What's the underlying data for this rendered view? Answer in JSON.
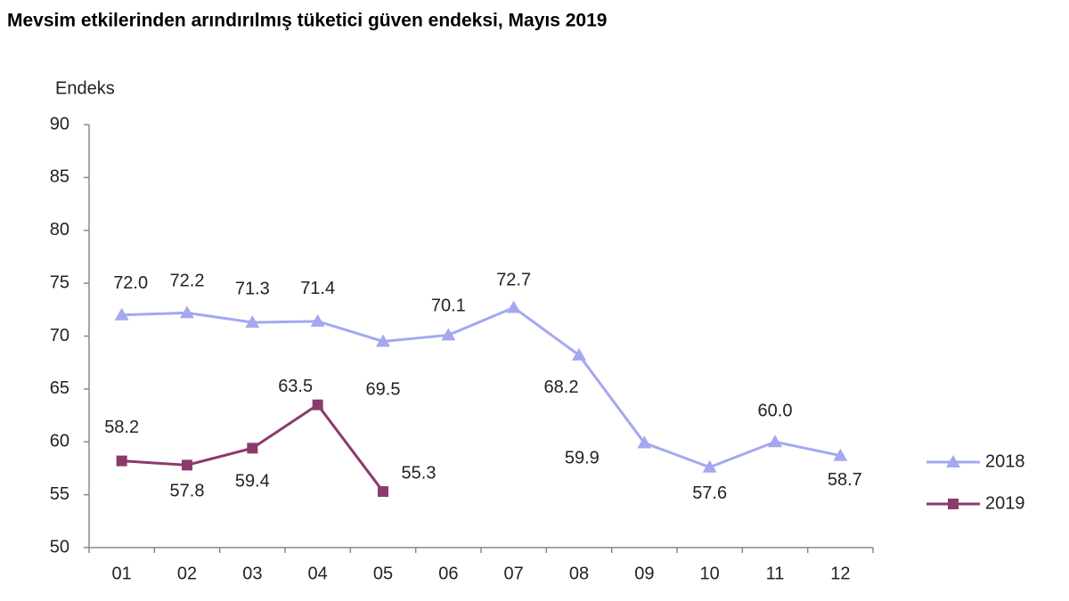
{
  "chart_data": {
    "type": "line",
    "title": "Mevsim etkilerinden arındırılmış tüketici güven endeksi, Mayıs 2019",
    "y_label": "Endeks",
    "categories": [
      "01",
      "02",
      "03",
      "04",
      "05",
      "06",
      "07",
      "08",
      "09",
      "10",
      "11",
      "12"
    ],
    "series": [
      {
        "name": "2018",
        "color": "#a4a8f0",
        "marker": "triangle",
        "values": [
          72.0,
          72.2,
          71.3,
          71.4,
          69.5,
          70.1,
          72.7,
          68.2,
          59.9,
          57.6,
          60.0,
          58.7
        ],
        "value_labels": [
          "72.0",
          "72.2",
          "71.3",
          "71.4",
          "69.5",
          "70.1",
          "72.7",
          "68.2",
          "59.9",
          "57.6",
          "60.0",
          "58.7"
        ]
      },
      {
        "name": "2019",
        "color": "#8b3a6c",
        "marker": "square",
        "values": [
          58.2,
          57.8,
          59.4,
          63.5,
          55.3,
          null,
          null,
          null,
          null,
          null,
          null,
          null
        ],
        "value_labels": [
          "58.2",
          "57.8",
          "59.4",
          "63.5",
          "55.3",
          null,
          null,
          null,
          null,
          null,
          null,
          null
        ]
      }
    ],
    "ylim": [
      50,
      90
    ],
    "yticks": [
      50,
      55,
      60,
      65,
      70,
      75,
      80,
      85,
      90
    ],
    "grid": false
  }
}
